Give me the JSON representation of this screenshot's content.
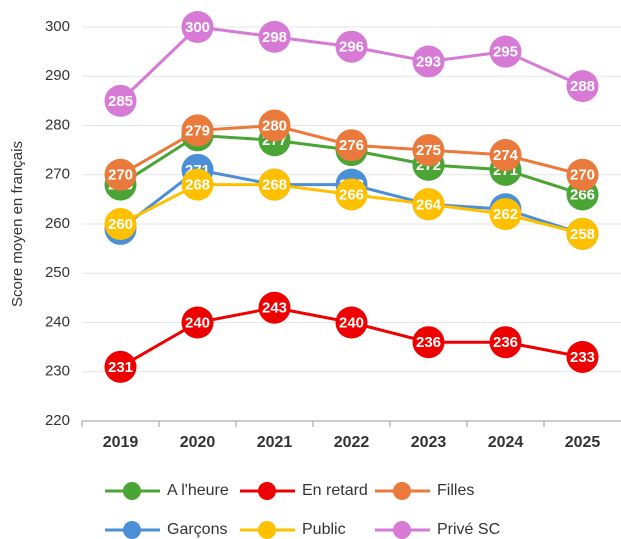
{
  "chart_data": {
    "type": "line",
    "y_label": "Score moyen en français",
    "categories": [
      "2019",
      "2020",
      "2021",
      "2022",
      "2023",
      "2024",
      "2025"
    ],
    "series": [
      {
        "name": "A l'heure",
        "color": "#4aa535",
        "values": [
          268,
          278,
          277,
          275,
          272,
          271,
          266
        ]
      },
      {
        "name": "En retard",
        "color": "#ee0000",
        "values": [
          231,
          240,
          243,
          240,
          236,
          236,
          233
        ]
      },
      {
        "name": "Filles",
        "color": "#ea7a3c",
        "values": [
          270,
          279,
          280,
          276,
          275,
          274,
          270
        ]
      },
      {
        "name": "Garçons",
        "color": "#4b8fd6",
        "values": [
          259,
          271,
          268,
          268,
          264,
          263,
          258
        ]
      },
      {
        "name": "Public",
        "color": "#ffc000",
        "values": [
          260,
          268,
          268,
          266,
          264,
          262,
          258
        ]
      },
      {
        "name": "Privé SC",
        "color": "#d67ad6",
        "values": [
          285,
          300,
          298,
          296,
          293,
          295,
          288
        ]
      }
    ],
    "ylim": [
      220,
      300
    ],
    "yticks": [
      220,
      230,
      240,
      250,
      260,
      270,
      280,
      290,
      300
    ],
    "grid": true,
    "legend": "bottom"
  }
}
